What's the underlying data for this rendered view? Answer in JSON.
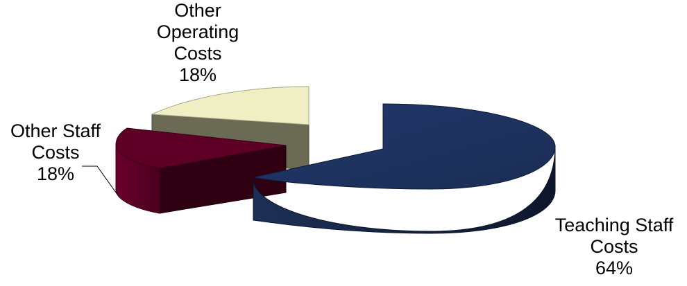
{
  "chart_data": {
    "type": "pie",
    "title": "",
    "slices": [
      {
        "label_lines": [
          "Teaching Staff",
          "Costs"
        ],
        "percent_label": "64%",
        "value": 64,
        "color": "#1f3460"
      },
      {
        "label_lines": [
          "Other Staff",
          "Costs"
        ],
        "percent_label": "18%",
        "value": 18,
        "color": "#5e0026"
      },
      {
        "label_lines": [
          "Other",
          "Operating",
          "Costs"
        ],
        "percent_label": "18%",
        "value": 18,
        "color": "#f0efc4"
      }
    ],
    "exploded": true,
    "three_d": true,
    "legend": "none"
  }
}
